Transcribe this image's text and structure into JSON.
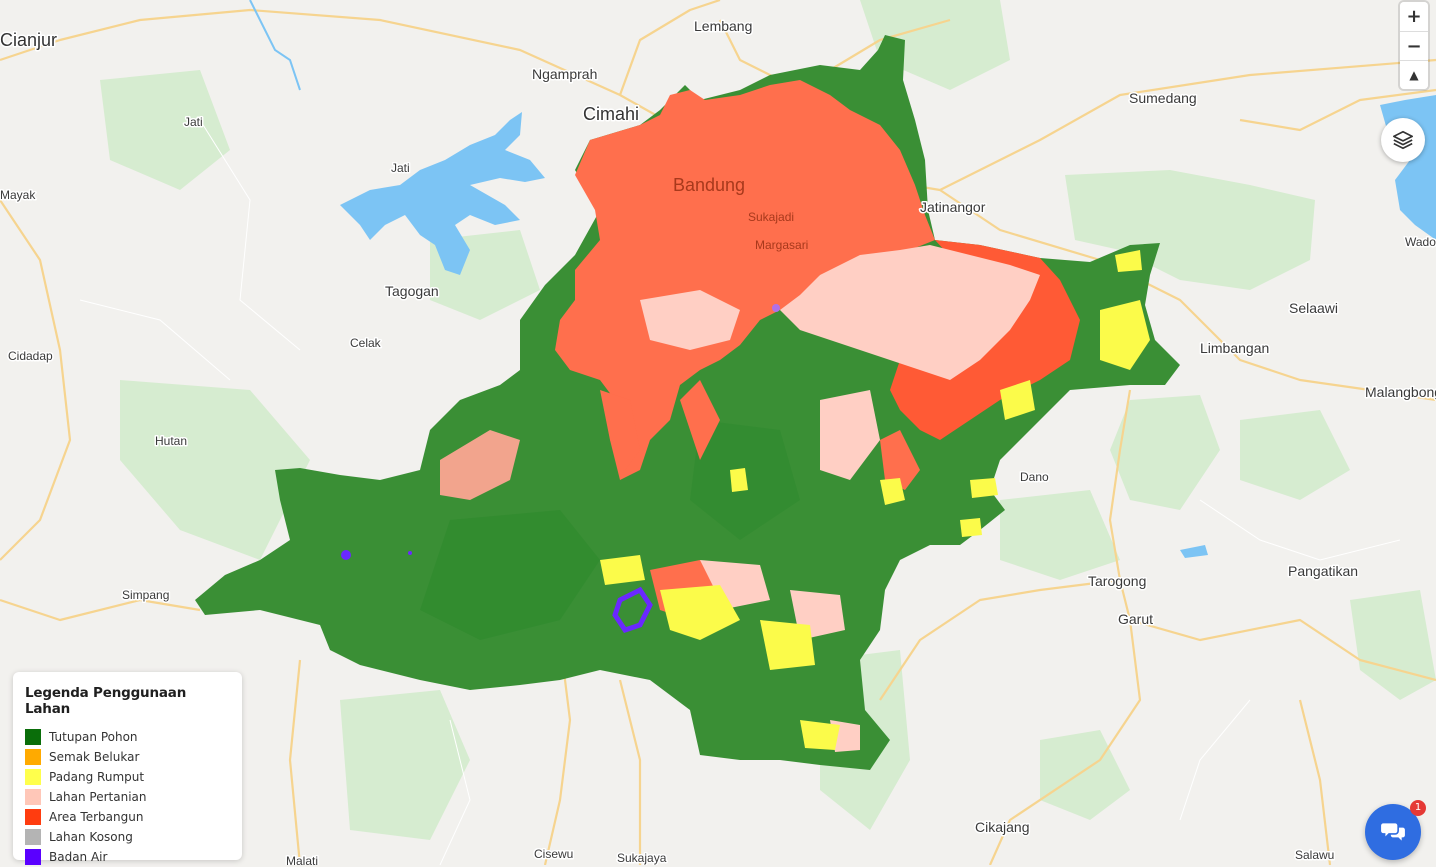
{
  "places": {
    "cianjur": "Cianjur",
    "lembang": "Lembang",
    "ngamprah": "Ngamprah",
    "cimahi": "Cimahi",
    "sumedang": "Sumedang",
    "jati1": "Jati",
    "jati2": "Jati",
    "mayak": "Mayak",
    "bandung": "Bandung",
    "sukajadi": "Sukajadi",
    "margasari": "Margasari",
    "jatinangor": "Jatinangor",
    "wado": "Wado",
    "tagogan": "Tagogan",
    "selaawi": "Selaawi",
    "cidadap": "Cidadap",
    "celak": "Celak",
    "limbangan": "Limbangan",
    "malangbong": "Malangbong",
    "hutan": "Hutan",
    "dano": "Dano",
    "simpang": "Simpang",
    "tarogong": "Tarogong",
    "pangatikan": "Pangatikan",
    "garut": "Garut",
    "cikajang": "Cikajang",
    "cisewu": "Cisewu",
    "sukajaya": "Sukajaya",
    "malati": "Malati",
    "salawu": "Salawu"
  },
  "controls": {
    "zoom_in": "+",
    "zoom_out": "−",
    "reset_north": "▲"
  },
  "legend": {
    "title": "Legenda Penggunaan Lahan",
    "items": [
      {
        "label": "Tutupan Pohon",
        "color": "#0a6e0a"
      },
      {
        "label": "Semak Belukar",
        "color": "#ffaa00"
      },
      {
        "label": "Padang Rumput",
        "color": "#ffff4c"
      },
      {
        "label": "Lahan Pertanian",
        "color": "#ffc7b8"
      },
      {
        "label": "Area Terbangun",
        "color": "#ff3c0f"
      },
      {
        "label": "Lahan Kosong",
        "color": "#b4b4b4"
      },
      {
        "label": "Badan Air",
        "color": "#5a00ff"
      }
    ]
  },
  "chat": {
    "badge_count": "1",
    "icon": "chat-bubbles-icon"
  },
  "colors": {
    "forest": "#3a8f35",
    "urban": "#ff6f4d",
    "farmland": "#ffcfc4",
    "grass": "#fbfb4a",
    "water": "#7cc4f4",
    "base": "#f2f1ee",
    "road": "#f7d79a"
  }
}
